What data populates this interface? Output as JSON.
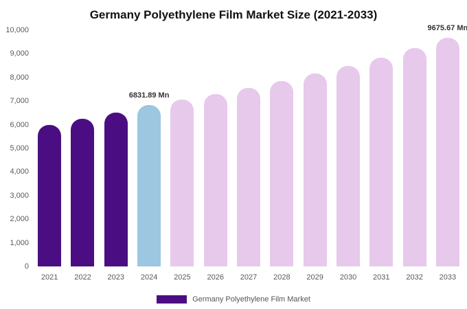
{
  "chart_data": {
    "type": "bar",
    "title": "Germany Polyethylene Film Market Size (2021-2033)",
    "categories": [
      "2021",
      "2022",
      "2023",
      "2024",
      "2025",
      "2026",
      "2027",
      "2028",
      "2029",
      "2030",
      "2031",
      "2032",
      "2033"
    ],
    "values": [
      6000,
      6250,
      6500,
      6831.89,
      7050,
      7300,
      7570,
      7860,
      8170,
      8500,
      8850,
      9240,
      9675.67
    ],
    "xlabel": "",
    "ylabel": "",
    "ylim": [
      0,
      10000
    ],
    "ytick_step": 1000,
    "grid": false,
    "legend_position": "bottom",
    "bar_colors": {
      "purple": "#4b0e82",
      "blue": "#9dc6e0",
      "pink": "#e7c9ec"
    },
    "color_map": [
      "purple",
      "purple",
      "purple",
      "blue",
      "pink",
      "pink",
      "pink",
      "pink",
      "pink",
      "pink",
      "pink",
      "pink",
      "pink"
    ],
    "annotations": [
      {
        "index": 3,
        "text": "6831.89 Mn"
      },
      {
        "index": 12,
        "text": "9675.67 Mn"
      }
    ],
    "legend": {
      "label": "Germany Polyethylene Film Market",
      "color": "#4b0e82"
    }
  }
}
